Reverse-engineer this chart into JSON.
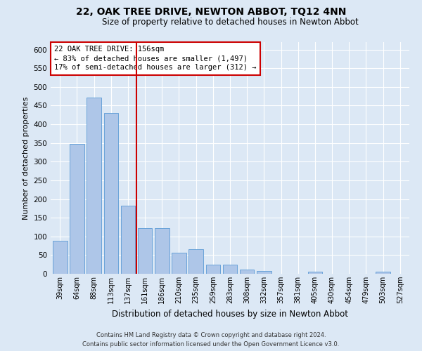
{
  "title": "22, OAK TREE DRIVE, NEWTON ABBOT, TQ12 4NN",
  "subtitle": "Size of property relative to detached houses in Newton Abbot",
  "xlabel": "Distribution of detached houses by size in Newton Abbot",
  "ylabel": "Number of detached properties",
  "categories": [
    "39sqm",
    "64sqm",
    "88sqm",
    "113sqm",
    "137sqm",
    "161sqm",
    "186sqm",
    "210sqm",
    "235sqm",
    "259sqm",
    "283sqm",
    "308sqm",
    "332sqm",
    "357sqm",
    "381sqm",
    "405sqm",
    "430sqm",
    "454sqm",
    "479sqm",
    "503sqm",
    "527sqm"
  ],
  "values": [
    88,
    348,
    472,
    430,
    183,
    122,
    122,
    57,
    65,
    25,
    25,
    12,
    8,
    0,
    0,
    5,
    0,
    0,
    0,
    5,
    0
  ],
  "bar_color": "#aec6e8",
  "bar_edge_color": "#5b9bd5",
  "annotation_line1": "22 OAK TREE DRIVE: 156sqm",
  "annotation_line2": "← 83% of detached houses are smaller (1,497)",
  "annotation_line3": "17% of semi-detached houses are larger (312) →",
  "annotation_box_color": "#ffffff",
  "annotation_box_edge_color": "#cc0000",
  "red_line_color": "#cc0000",
  "ylim": [
    0,
    620
  ],
  "yticks": [
    0,
    50,
    100,
    150,
    200,
    250,
    300,
    350,
    400,
    450,
    500,
    550,
    600
  ],
  "footer1": "Contains HM Land Registry data © Crown copyright and database right 2024.",
  "footer2": "Contains public sector information licensed under the Open Government Licence v3.0.",
  "fig_bg_color": "#dce8f5",
  "plot_bg_color": "#dce8f5"
}
